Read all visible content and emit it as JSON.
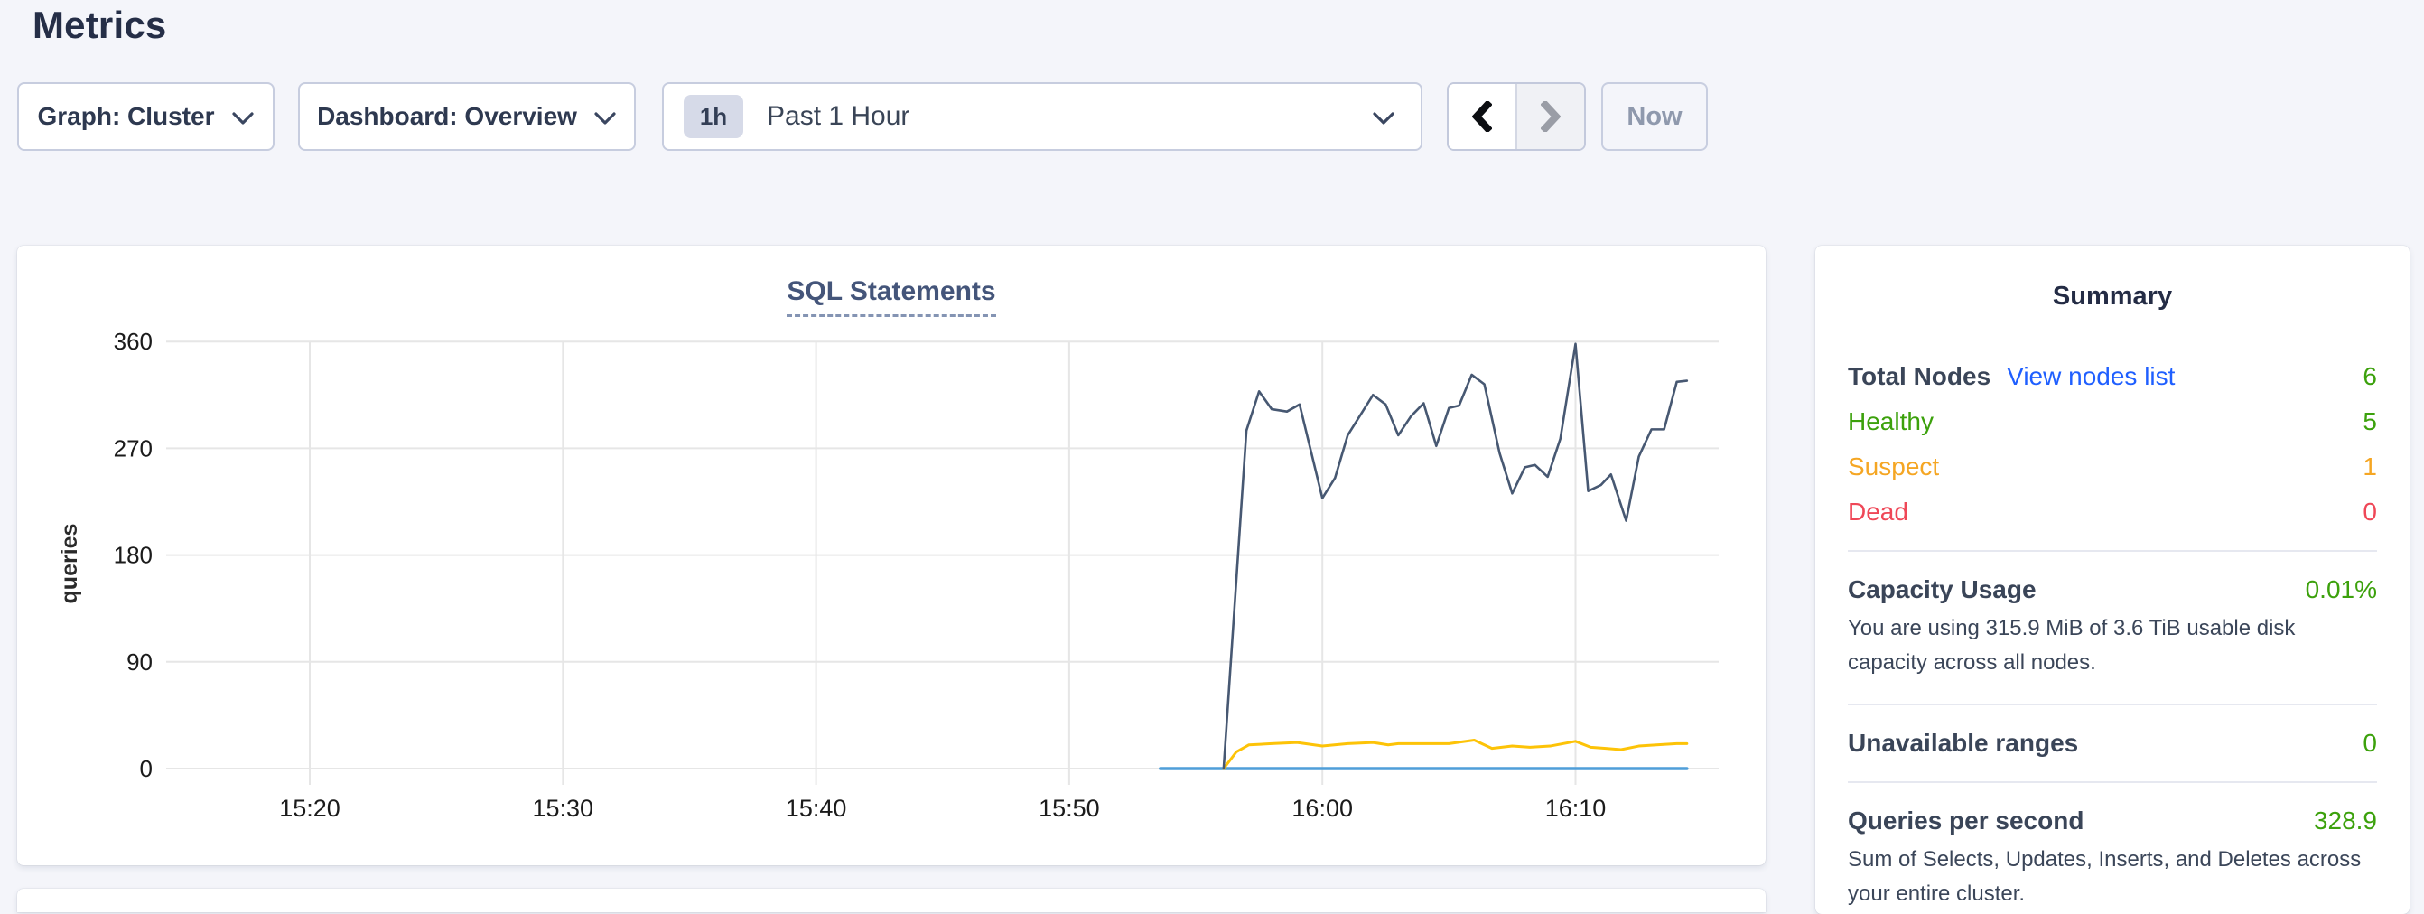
{
  "page": {
    "title": "Metrics"
  },
  "toolbar": {
    "graph_dropdown_label": "Graph: Cluster",
    "dashboard_dropdown_label": "Dashboard: Overview",
    "time_chip": "1h",
    "time_range_label": "Past 1 Hour",
    "now_button_label": "Now"
  },
  "chart_data": {
    "type": "line",
    "title": "SQL Statements",
    "ylabel": "queries",
    "ylim": [
      0,
      360
    ],
    "y_ticks": [
      0,
      90,
      180,
      270,
      360
    ],
    "x_ticks": [
      "15:20",
      "15:30",
      "15:40",
      "15:50",
      "16:00",
      "16:10"
    ],
    "x_tick_minutes": [
      20,
      30,
      40,
      50,
      60,
      70
    ],
    "x_domain": "15:14 to 16:15 (minutes after 15:00)",
    "grid": true,
    "legend_position": "none",
    "colors": {
      "navy": "#475872",
      "yellow": "#fdc307",
      "blue": "#4f9ed9",
      "gridline": "#e6e6e6",
      "tick_text": "#1b1b1b"
    },
    "series": [
      {
        "name": "series-blue-flat",
        "color": "#4f9ed9",
        "stroke_width": 3.5,
        "points": [
          [
            53.6,
            0
          ],
          [
            74.4,
            0
          ]
        ]
      },
      {
        "name": "series-yellow",
        "color": "#fdc307",
        "stroke_width": 3,
        "points": [
          [
            56.1,
            0
          ],
          [
            56.6,
            14
          ],
          [
            57.1,
            20
          ],
          [
            58,
            21
          ],
          [
            59,
            22
          ],
          [
            60,
            19
          ],
          [
            61,
            21
          ],
          [
            62,
            22
          ],
          [
            62.6,
            20
          ],
          [
            63,
            21
          ],
          [
            64,
            21
          ],
          [
            65,
            21
          ],
          [
            66,
            24
          ],
          [
            66.7,
            17
          ],
          [
            67.5,
            19
          ],
          [
            68.2,
            18
          ],
          [
            69,
            19
          ],
          [
            70,
            23
          ],
          [
            70.6,
            18
          ],
          [
            71.2,
            17
          ],
          [
            71.8,
            16
          ],
          [
            72.5,
            19
          ],
          [
            73.2,
            20
          ],
          [
            74,
            21
          ],
          [
            74.4,
            21
          ]
        ]
      },
      {
        "name": "series-navy",
        "color": "#475872",
        "stroke_width": 2.6,
        "points": [
          [
            56.1,
            0
          ],
          [
            57,
            285
          ],
          [
            57.5,
            318
          ],
          [
            58,
            303
          ],
          [
            58.6,
            301
          ],
          [
            59.1,
            307
          ],
          [
            60,
            228
          ],
          [
            60.5,
            245
          ],
          [
            61,
            281
          ],
          [
            62,
            315
          ],
          [
            62.5,
            307
          ],
          [
            63,
            281
          ],
          [
            63.5,
            297
          ],
          [
            64,
            308
          ],
          [
            64.5,
            272
          ],
          [
            65,
            304
          ],
          [
            65.4,
            306
          ],
          [
            65.9,
            332
          ],
          [
            66.4,
            324
          ],
          [
            67,
            266
          ],
          [
            67.5,
            232
          ],
          [
            68,
            254
          ],
          [
            68.4,
            256
          ],
          [
            68.9,
            246
          ],
          [
            69.4,
            278
          ],
          [
            70,
            358
          ],
          [
            70.5,
            234
          ],
          [
            71,
            239
          ],
          [
            71.4,
            248
          ],
          [
            72,
            209
          ],
          [
            72.5,
            263
          ],
          [
            73,
            286
          ],
          [
            73.5,
            286
          ],
          [
            74,
            326
          ],
          [
            74.4,
            327
          ]
        ]
      }
    ]
  },
  "summary": {
    "title": "Summary",
    "nodes": {
      "label": "Total Nodes",
      "link": "View nodes list",
      "value": "6",
      "statuses": [
        {
          "label": "Healthy",
          "value": "5",
          "color": "#3ca10c"
        },
        {
          "label": "Suspect",
          "value": "1",
          "color": "#f5a623"
        },
        {
          "label": "Dead",
          "value": "0",
          "color": "#ef4757"
        }
      ]
    },
    "capacity": {
      "label": "Capacity Usage",
      "value": "0.01%",
      "description": "You are using 315.9 MiB of 3.6 TiB usable disk capacity across all nodes."
    },
    "unavailable_ranges": {
      "label": "Unavailable ranges",
      "value": "0"
    },
    "qps": {
      "label": "Queries per second",
      "value": "328.9",
      "description": "Sum of Selects, Updates, Inserts, and Deletes across your entire cluster."
    }
  }
}
